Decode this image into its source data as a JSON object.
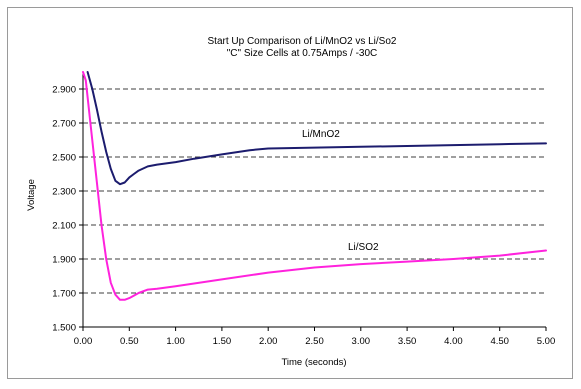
{
  "chart_data": {
    "type": "line",
    "title": "Start Up Comparison of Li/MnO2 vs Li/So2",
    "subtitle": "\"C\" Size Cells at 0.75Amps / -30C",
    "xlabel": "Time (seconds)",
    "ylabel": "Voltage",
    "xlim": [
      0,
      5
    ],
    "ylim": [
      1.5,
      3.0
    ],
    "x_ticks": [
      "0.00",
      "0.50",
      "1.00",
      "1.50",
      "2.00",
      "2.50",
      "3.00",
      "3.50",
      "4.00",
      "4.50",
      "5.00"
    ],
    "y_ticks": [
      "1.500",
      "1.700",
      "1.900",
      "2.100",
      "2.300",
      "2.500",
      "2.700",
      "2.900"
    ],
    "grid": "horizontal dashed",
    "series": [
      {
        "name": "Li/MnO2",
        "color": "#1c1c6e",
        "points": [
          [
            0.05,
            3.0
          ],
          [
            0.1,
            2.9
          ],
          [
            0.15,
            2.78
          ],
          [
            0.2,
            2.65
          ],
          [
            0.25,
            2.53
          ],
          [
            0.3,
            2.43
          ],
          [
            0.35,
            2.36
          ],
          [
            0.4,
            2.34
          ],
          [
            0.45,
            2.35
          ],
          [
            0.5,
            2.38
          ],
          [
            0.55,
            2.4
          ],
          [
            0.6,
            2.42
          ],
          [
            0.7,
            2.445
          ],
          [
            0.8,
            2.455
          ],
          [
            1.0,
            2.47
          ],
          [
            1.2,
            2.49
          ],
          [
            1.5,
            2.515
          ],
          [
            1.8,
            2.54
          ],
          [
            2.0,
            2.55
          ],
          [
            2.5,
            2.555
          ],
          [
            3.0,
            2.56
          ],
          [
            3.5,
            2.565
          ],
          [
            4.0,
            2.57
          ],
          [
            4.5,
            2.575
          ],
          [
            5.0,
            2.58
          ]
        ]
      },
      {
        "name": "Li/SO2",
        "color": "#ff22dd",
        "points": [
          [
            0.0,
            3.0
          ],
          [
            0.03,
            2.95
          ],
          [
            0.08,
            2.7
          ],
          [
            0.15,
            2.35
          ],
          [
            0.2,
            2.1
          ],
          [
            0.25,
            1.9
          ],
          [
            0.3,
            1.76
          ],
          [
            0.35,
            1.69
          ],
          [
            0.4,
            1.66
          ],
          [
            0.45,
            1.66
          ],
          [
            0.5,
            1.67
          ],
          [
            0.55,
            1.685
          ],
          [
            0.6,
            1.7
          ],
          [
            0.7,
            1.72
          ],
          [
            0.8,
            1.725
          ],
          [
            1.0,
            1.74
          ],
          [
            1.5,
            1.78
          ],
          [
            2.0,
            1.82
          ],
          [
            2.5,
            1.85
          ],
          [
            3.0,
            1.87
          ],
          [
            3.5,
            1.885
          ],
          [
            4.0,
            1.9
          ],
          [
            4.5,
            1.92
          ],
          [
            5.0,
            1.95
          ]
        ]
      }
    ]
  }
}
